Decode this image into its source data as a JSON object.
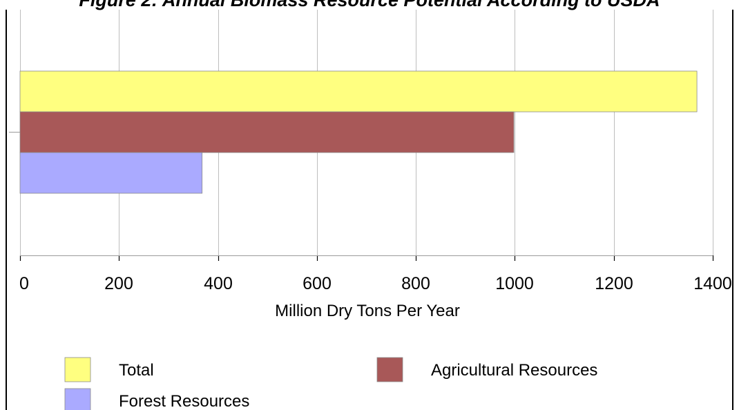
{
  "chart_data": {
    "type": "bar",
    "orientation": "horizontal",
    "title": "Figure 2: Annual Biomass Resource Potential According to USDA",
    "xlabel": "Million Dry Tons Per Year",
    "ylabel": "",
    "xlim": [
      0,
      1400
    ],
    "x_ticks": [
      0,
      200,
      400,
      600,
      800,
      1000,
      1200,
      1400
    ],
    "grid": "vertical",
    "legend_position": "bottom",
    "series": [
      {
        "name": "Total",
        "value": 1368,
        "color": "#FFFF80"
      },
      {
        "name": "Agricultural Resources",
        "value": 998,
        "color": "#A85858"
      },
      {
        "name": "Forest Resources",
        "value": 368,
        "color": "#AAAAFF"
      }
    ]
  }
}
